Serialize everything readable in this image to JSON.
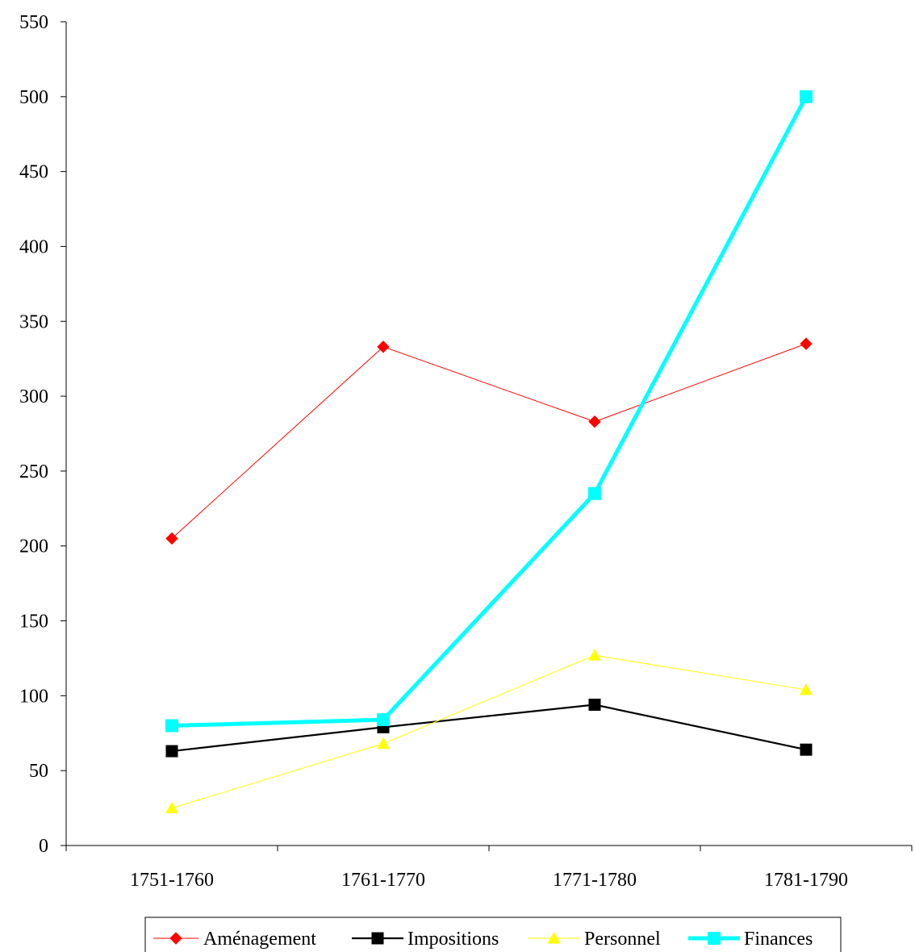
{
  "chart_data": {
    "type": "line",
    "title": "",
    "xlabel": "",
    "ylabel": "",
    "categories": [
      "1751-1760",
      "1761-1770",
      "1771-1780",
      "1781-1790"
    ],
    "ylim": [
      0,
      550
    ],
    "yticks": [
      0,
      50,
      100,
      150,
      200,
      250,
      300,
      350,
      400,
      450,
      500,
      550
    ],
    "grid": false,
    "legend_position": "bottom",
    "series": [
      {
        "name": "Aménagement",
        "values": [
          205,
          333,
          283,
          335
        ],
        "color": "#ff0000",
        "marker": "diamond",
        "line_width": "thin"
      },
      {
        "name": "Impositions",
        "values": [
          63,
          79,
          94,
          64
        ],
        "color": "#000000",
        "marker": "square",
        "line_width": "medium"
      },
      {
        "name": "Personnel",
        "values": [
          25,
          68,
          127,
          104
        ],
        "color": "#ffff00",
        "marker": "triangle",
        "line_width": "thin"
      },
      {
        "name": "Finances",
        "values": [
          80,
          84,
          235,
          500
        ],
        "color": "#00ffff",
        "marker": "square",
        "line_width": "thick"
      }
    ]
  }
}
